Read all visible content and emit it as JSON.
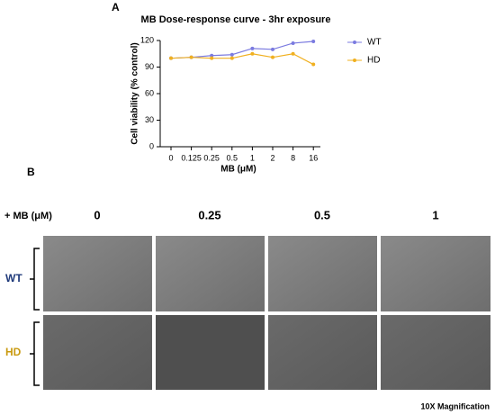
{
  "panel_a_label": "A",
  "chart_data": {
    "type": "line",
    "title": "MB Dose-response curve - 3hr exposure",
    "x_label": "MB (μM)",
    "y_label": "Cell viability (% control)",
    "categories": [
      "0",
      "0.125",
      "0.25",
      "0.5",
      "1",
      "2",
      "8",
      "16"
    ],
    "series": [
      {
        "name": "WT",
        "color": "#7b7be0",
        "values": [
          100,
          101,
          103,
          104,
          111,
          110,
          117,
          119
        ]
      },
      {
        "name": "HD",
        "color": "#f0b020",
        "values": [
          100,
          101,
          100,
          100,
          105,
          101,
          105,
          93
        ]
      }
    ],
    "ylim": [
      0,
      120
    ],
    "yticks": [
      0,
      30,
      60,
      90,
      120
    ],
    "legend": "right"
  },
  "panel_b": {
    "label": "B",
    "dose_header": "+ MB (μM)",
    "doses": [
      "0",
      "0.25",
      "0.5",
      "1"
    ],
    "rows": [
      "WT",
      "HD"
    ],
    "magnification": "10X Magnification"
  }
}
